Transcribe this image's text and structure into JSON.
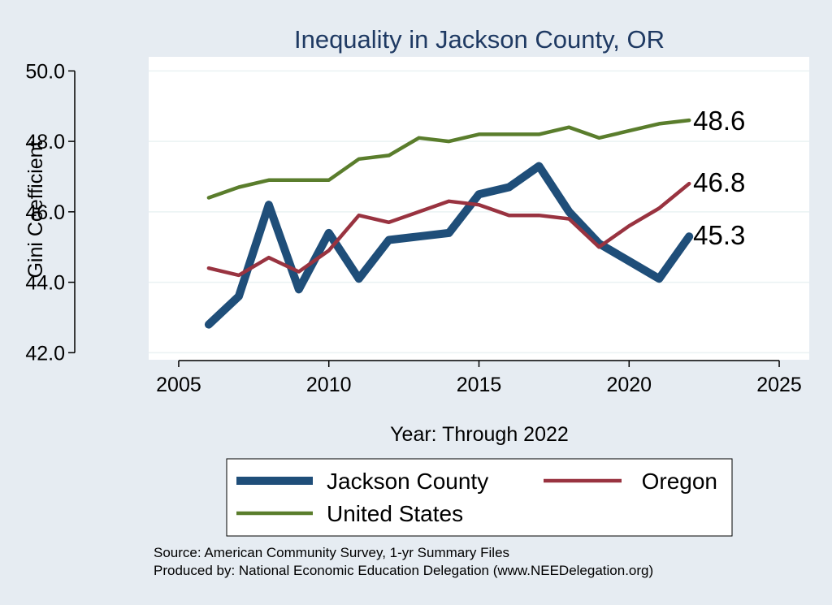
{
  "chart_data": {
    "type": "line",
    "title": "Inequality in Jackson County, OR",
    "xlabel": "Year: Through 2022",
    "ylabel": "Gini Coefficient",
    "xlim": [
      2004,
      2026
    ],
    "ylim": [
      41.8,
      50.4
    ],
    "xticks": [
      2005,
      2010,
      2015,
      2020,
      2025
    ],
    "yticks": [
      42.0,
      44.0,
      46.0,
      48.0,
      50.0
    ],
    "ytick_labels": [
      "42.0",
      "44.0",
      "46.0",
      "48.0",
      "50.0"
    ],
    "grid": "horizontal",
    "series": [
      {
        "name": "Jackson County",
        "color": "#1f4e79",
        "width": 10,
        "x": [
          2006,
          2007,
          2008,
          2009,
          2010,
          2011,
          2012,
          2013,
          2014,
          2015,
          2016,
          2017,
          2018,
          2019,
          2020,
          2021,
          2022
        ],
        "values": [
          42.8,
          43.6,
          46.2,
          43.8,
          45.4,
          44.1,
          45.2,
          45.3,
          45.4,
          46.5,
          46.7,
          47.3,
          46.0,
          45.1,
          44.6,
          44.1,
          45.3
        ],
        "end_label": "45.3"
      },
      {
        "name": "Oregon",
        "color": "#993340",
        "width": 4.5,
        "x": [
          2006,
          2007,
          2008,
          2009,
          2010,
          2011,
          2012,
          2013,
          2014,
          2015,
          2016,
          2017,
          2018,
          2019,
          2020,
          2021,
          2022
        ],
        "values": [
          44.4,
          44.2,
          44.7,
          44.3,
          44.9,
          45.9,
          45.7,
          46.0,
          46.3,
          46.2,
          45.9,
          45.9,
          45.8,
          45.0,
          45.6,
          46.1,
          46.8
        ],
        "end_label": "46.8"
      },
      {
        "name": "United States",
        "color": "#5a7d2c",
        "width": 4.5,
        "x": [
          2006,
          2007,
          2008,
          2009,
          2010,
          2011,
          2012,
          2013,
          2014,
          2015,
          2016,
          2017,
          2018,
          2019,
          2020,
          2021,
          2022
        ],
        "values": [
          46.4,
          46.7,
          46.9,
          46.9,
          46.9,
          47.5,
          47.6,
          48.1,
          48.0,
          48.2,
          48.2,
          48.2,
          48.4,
          48.1,
          48.3,
          48.5,
          48.6
        ],
        "end_label": "48.6"
      }
    ],
    "legend": {
      "placement": "bottom",
      "order": [
        "Jackson County",
        "Oregon",
        "United States"
      ]
    },
    "source_lines": [
      "Source: American Community Survey, 1-yr Summary Files",
      "Produced by: National Economic Education Delegation (www.NEEDelegation.org)"
    ]
  }
}
